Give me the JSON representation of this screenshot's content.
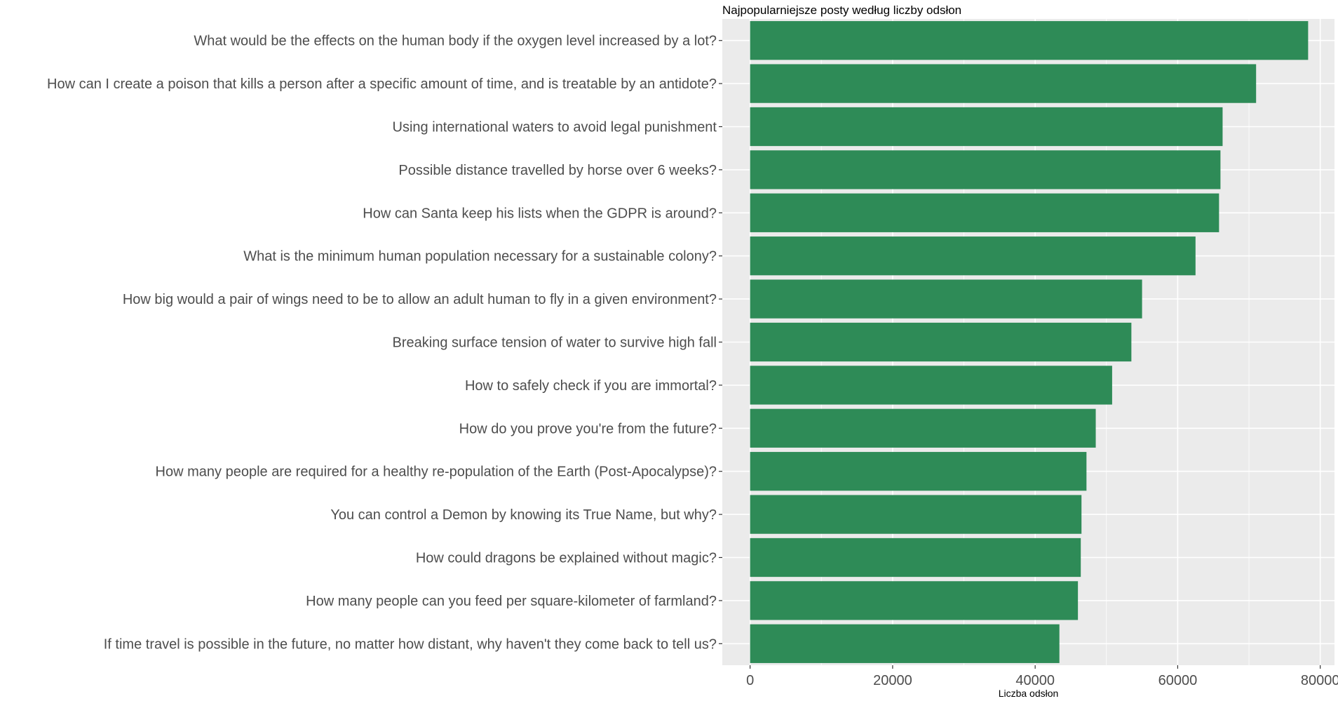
{
  "chart_data": {
    "type": "bar",
    "orientation": "horizontal",
    "title": "Najpopularniejsze posty według liczby odsłon",
    "xlabel": "Liczba odsłon",
    "ylabel": "",
    "xlim": [
      -3900,
      82000
    ],
    "x_ticks": [
      0,
      20000,
      40000,
      60000,
      80000
    ],
    "x_tick_labels": [
      "0",
      "20000",
      "40000",
      "60000",
      "80000"
    ],
    "grid": true,
    "legend": "none",
    "bar_color": "#2e8b57",
    "panel_background": "#ebebeb",
    "categories": [
      "What would be the effects on the human body if the oxygen level increased by a lot?",
      "How can I create a poison that kills a person after a specific amount of time, and is treatable by an antidote?",
      "Using international waters to avoid legal punishment",
      "Possible distance travelled by horse over 6 weeks?",
      "How can Santa keep his lists when the GDPR is around?",
      "What is the minimum human population necessary for a sustainable colony?",
      "How big would a pair of wings need to be to allow an adult human to fly in a given environment?",
      "Breaking surface tension of water to survive high fall",
      "How to safely check if you are immortal?",
      "How do you prove you're from the future?",
      "How many people are required for a healthy re-population of the Earth (Post-Apocalypse)?",
      "You can control a Demon by knowing its True Name, but why?",
      "How could dragons be explained without magic?",
      "How many people can you feed per square-kilometer of farmland?",
      "If time travel is possible in the future, no matter how distant, why haven't they come back to tell us?"
    ],
    "values": [
      78300,
      71000,
      66300,
      66000,
      65800,
      62500,
      55000,
      53500,
      50800,
      48500,
      47200,
      46500,
      46400,
      46000,
      43400
    ]
  }
}
